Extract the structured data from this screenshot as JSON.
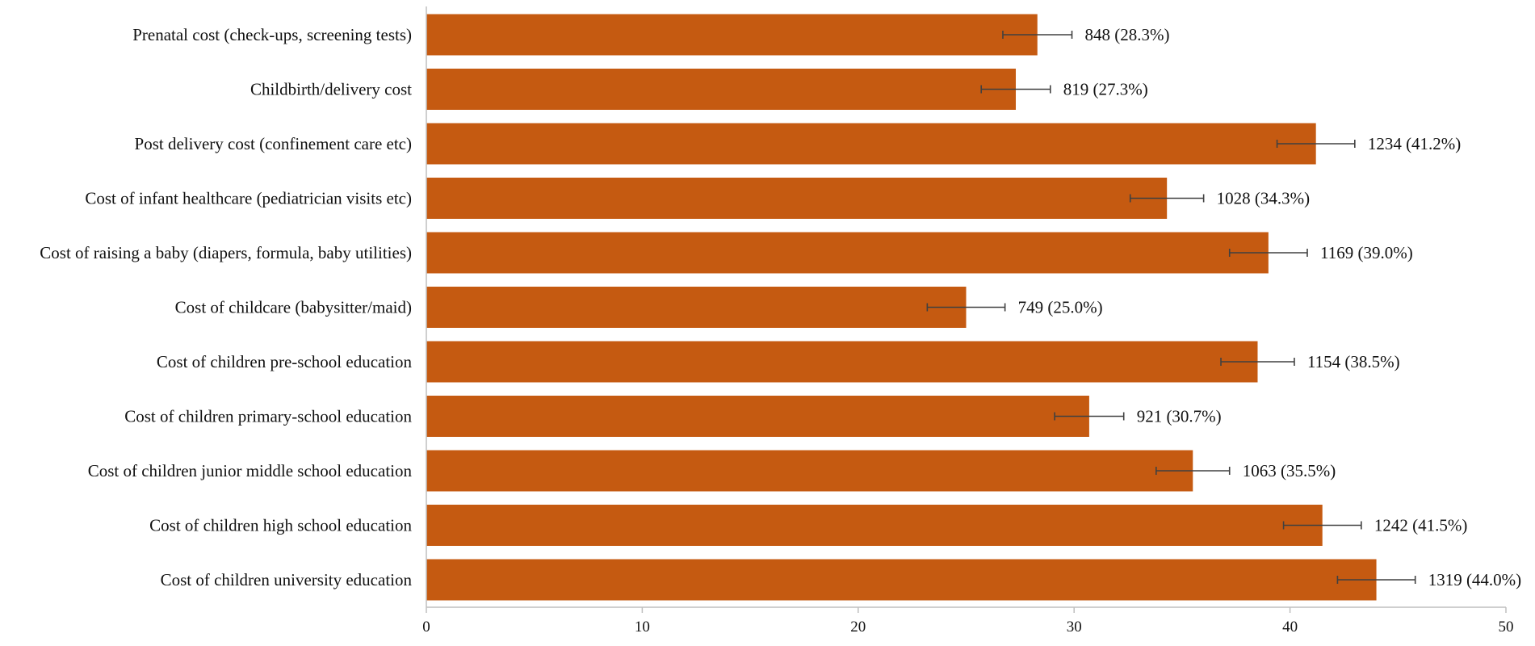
{
  "chart_data": {
    "type": "bar",
    "orientation": "horizontal",
    "title": "",
    "xlabel": "",
    "ylabel": "",
    "xlim": [
      0,
      50
    ],
    "x_ticks": [
      0,
      10,
      20,
      30,
      40,
      50
    ],
    "x_tick_labels": [
      "0",
      "10",
      "20",
      "30",
      "40",
      "50"
    ],
    "grid": false,
    "legend": "none",
    "bar_color": "#C55A11",
    "error_bar_color": "#404040",
    "categories": [
      "Prenatal cost (check-ups, screening tests)",
      "Childbirth/delivery cost",
      "Post delivery cost (confinement care etc)",
      "Cost of infant healthcare (pediatrician visits etc)",
      "Cost of raising a baby (diapers, formula, baby utilities)",
      "Cost of childcare (babysitter/maid)",
      "Cost of children pre-school education",
      "Cost of children primary-school education",
      "Cost of children junior middle school education",
      "Cost of children high school education",
      "Cost of children university education"
    ],
    "values": [
      28.3,
      27.3,
      41.2,
      34.3,
      39.0,
      25.0,
      38.5,
      30.7,
      35.5,
      41.5,
      44.0
    ],
    "error_margin": [
      1.6,
      1.6,
      1.8,
      1.7,
      1.8,
      1.8,
      1.7,
      1.6,
      1.7,
      1.8,
      1.8
    ],
    "data_labels": [
      "848 (28.3%)",
      "819 (27.3%)",
      "1234 (41.2%)",
      "1028 (34.3%)",
      "1169 (39.0%)",
      "749 (25.0%)",
      "1154 (38.5%)",
      "921 (30.7%)",
      "1063 (35.5%)",
      "1242 (41.5%)",
      "1319 (44.0%)"
    ]
  }
}
